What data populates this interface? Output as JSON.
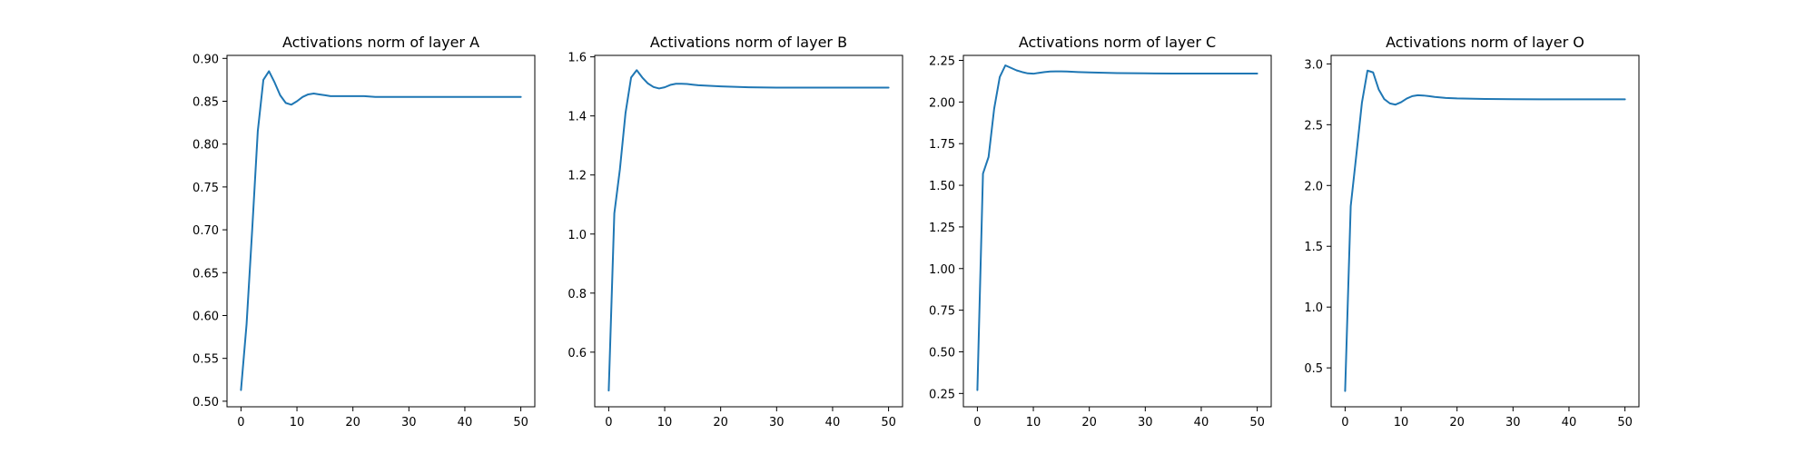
{
  "chart_data": [
    {
      "type": "line",
      "title": "Activations norm of layer A",
      "xlabel": "",
      "ylabel": "",
      "xlim": [
        -2.5,
        52.5
      ],
      "ylim": [
        0.4935,
        0.9035
      ],
      "xticks": [
        0,
        10,
        20,
        30,
        40,
        50
      ],
      "yticks": [
        0.5,
        0.55,
        0.6,
        0.65,
        0.7,
        0.75,
        0.8,
        0.85,
        0.9
      ],
      "ytick_labels": [
        "0.50",
        "0.55",
        "0.60",
        "0.65",
        "0.70",
        "0.75",
        "0.80",
        "0.85",
        "0.90"
      ],
      "grid": false,
      "series": [
        {
          "color": "#1f77b4",
          "x": [
            0,
            1,
            2,
            3,
            4,
            5,
            6,
            7,
            8,
            9,
            10,
            11,
            12,
            13,
            14,
            15,
            16,
            18,
            20,
            22,
            24,
            26,
            28,
            30,
            35,
            40,
            45,
            50
          ],
          "y": [
            0.513,
            0.59,
            0.7,
            0.815,
            0.875,
            0.885,
            0.872,
            0.857,
            0.848,
            0.846,
            0.85,
            0.855,
            0.858,
            0.859,
            0.858,
            0.857,
            0.856,
            0.856,
            0.856,
            0.856,
            0.855,
            0.855,
            0.855,
            0.855,
            0.855,
            0.855,
            0.855,
            0.855
          ]
        }
      ]
    },
    {
      "type": "line",
      "title": "Activations norm of layer B",
      "xlabel": "",
      "ylabel": "",
      "xlim": [
        -2.5,
        52.5
      ],
      "ylim": [
        0.415,
        1.605
      ],
      "xticks": [
        0,
        10,
        20,
        30,
        40,
        50
      ],
      "yticks": [
        0.6,
        0.8,
        1.0,
        1.2,
        1.4,
        1.6
      ],
      "ytick_labels": [
        "0.6",
        "0.8",
        "1.0",
        "1.2",
        "1.4",
        "1.6"
      ],
      "grid": false,
      "series": [
        {
          "color": "#1f77b4",
          "x": [
            0,
            1,
            2,
            3,
            4,
            5,
            6,
            7,
            8,
            9,
            10,
            11,
            12,
            13,
            14,
            15,
            16,
            18,
            20,
            25,
            30,
            35,
            40,
            45,
            50
          ],
          "y": [
            0.47,
            1.07,
            1.22,
            1.41,
            1.53,
            1.555,
            1.53,
            1.51,
            1.498,
            1.493,
            1.497,
            1.505,
            1.509,
            1.509,
            1.508,
            1.506,
            1.504,
            1.502,
            1.5,
            1.497,
            1.496,
            1.496,
            1.496,
            1.496,
            1.496
          ]
        }
      ]
    },
    {
      "type": "line",
      "title": "Activations norm of layer C",
      "xlabel": "",
      "ylabel": "",
      "xlim": [
        -2.5,
        52.5
      ],
      "ylim": [
        0.17,
        2.28
      ],
      "xticks": [
        0,
        10,
        20,
        30,
        40,
        50
      ],
      "yticks": [
        0.25,
        0.5,
        0.75,
        1.0,
        1.25,
        1.5,
        1.75,
        2.0,
        2.25
      ],
      "ytick_labels": [
        "0.25",
        "0.50",
        "0.75",
        "1.00",
        "1.25",
        "1.50",
        "1.75",
        "2.00",
        "2.25"
      ],
      "grid": false,
      "series": [
        {
          "color": "#1f77b4",
          "x": [
            0,
            1,
            2,
            3,
            4,
            5,
            6,
            7,
            8,
            9,
            10,
            11,
            12,
            13,
            14,
            15,
            16,
            18,
            20,
            25,
            30,
            35,
            40,
            45,
            50
          ],
          "y": [
            0.27,
            1.57,
            1.67,
            1.96,
            2.15,
            2.22,
            2.205,
            2.19,
            2.18,
            2.172,
            2.17,
            2.175,
            2.18,
            2.183,
            2.184,
            2.184,
            2.183,
            2.18,
            2.178,
            2.174,
            2.172,
            2.171,
            2.171,
            2.171,
            2.171
          ]
        }
      ]
    },
    {
      "type": "line",
      "title": "Activations norm of layer O",
      "xlabel": "",
      "ylabel": "",
      "xlim": [
        -2.5,
        52.5
      ],
      "ylim": [
        0.18,
        3.07
      ],
      "xticks": [
        0,
        10,
        20,
        30,
        40,
        50
      ],
      "yticks": [
        0.5,
        1.0,
        1.5,
        2.0,
        2.5,
        3.0
      ],
      "ytick_labels": [
        "0.5",
        "1.0",
        "1.5",
        "2.0",
        "2.5",
        "3.0"
      ],
      "grid": false,
      "series": [
        {
          "color": "#1f77b4",
          "x": [
            0,
            1,
            2,
            3,
            4,
            5,
            6,
            7,
            8,
            9,
            10,
            11,
            12,
            13,
            14,
            15,
            16,
            18,
            20,
            25,
            30,
            35,
            40,
            45,
            50
          ],
          "y": [
            0.31,
            1.83,
            2.25,
            2.68,
            2.945,
            2.93,
            2.79,
            2.71,
            2.675,
            2.665,
            2.685,
            2.715,
            2.735,
            2.742,
            2.74,
            2.735,
            2.728,
            2.72,
            2.716,
            2.712,
            2.71,
            2.709,
            2.709,
            2.709,
            2.709
          ]
        }
      ]
    }
  ]
}
